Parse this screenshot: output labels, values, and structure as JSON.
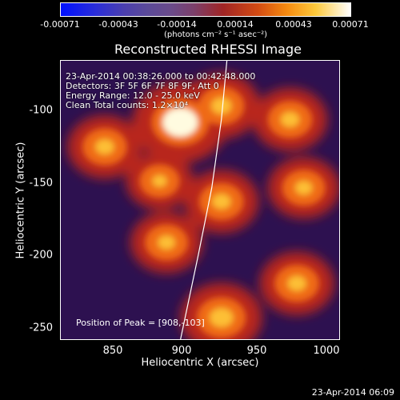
{
  "colorbar": {
    "ticks": [
      "-0.00071",
      "-0.00043",
      "-0.00014",
      "0.00014",
      "0.00043",
      "0.00071"
    ],
    "units": "(photons cm⁻² s⁻¹ asec⁻²)"
  },
  "info": {
    "time_range": "23-Apr-2014 00:38:26.000 to 00:42:48.000",
    "detectors": "Detectors: 3F 5F 6F 7F 8F 9F, Att 0",
    "energy": "Energy Range: 12.0 - 25.0 keV",
    "method": "Clean     Total counts: 1.2×10⁴",
    "peak": "Position of Peak = [908,-103]"
  },
  "footer": "23-Apr-2014 06:09",
  "chart_data": {
    "type": "heatmap",
    "title": "Reconstructed RHESSI Image",
    "xlabel": "Heliocentric X (arcsec)",
    "ylabel": "Heliocentric Y (arcsec)",
    "xlim": [
      818,
      1022
    ],
    "ylim": [
      -262,
      -57
    ],
    "x_ticks": [
      850,
      900,
      950,
      1000
    ],
    "y_ticks": [
      -100,
      -150,
      -200,
      -250
    ],
    "x_tick_labels": [
      "850",
      "900",
      "950",
      "1000"
    ],
    "y_tick_labels": [
      "-100",
      "-150",
      "-200",
      "-250"
    ],
    "colorbar_range": [
      -0.00071,
      0.00071
    ],
    "peak_position": [
      908,
      -103
    ],
    "limb_curve": [
      [
        939,
        -57
      ],
      [
        935,
        -100
      ],
      [
        928,
        -150
      ],
      [
        918,
        -200
      ],
      [
        905,
        -262
      ]
    ],
    "bright_sources": [
      {
        "x": 905,
        "y": -102,
        "intensity": 1.0
      },
      {
        "x": 935,
        "y": -90,
        "intensity": 0.6
      },
      {
        "x": 850,
        "y": -120,
        "intensity": 0.55
      },
      {
        "x": 985,
        "y": -100,
        "intensity": 0.55
      },
      {
        "x": 995,
        "y": -150,
        "intensity": 0.5
      },
      {
        "x": 935,
        "y": -160,
        "intensity": 0.55
      },
      {
        "x": 895,
        "y": -190,
        "intensity": 0.5
      },
      {
        "x": 990,
        "y": -220,
        "intensity": 0.55
      },
      {
        "x": 935,
        "y": -245,
        "intensity": 0.7
      },
      {
        "x": 890,
        "y": -145,
        "intensity": 0.4
      }
    ]
  }
}
